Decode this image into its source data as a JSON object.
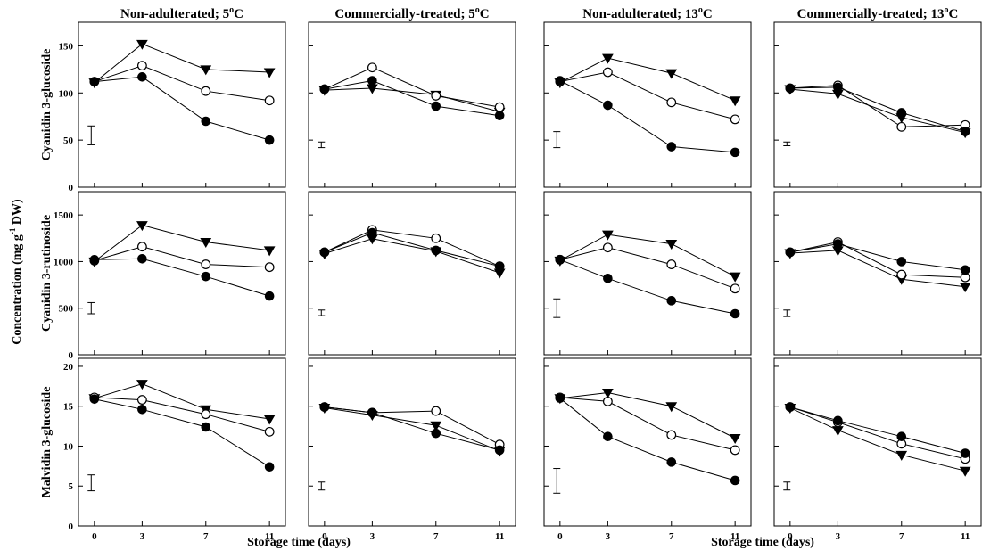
{
  "figure": {
    "y_axis_label": "Concentration (mg g",
    "y_axis_unit_sup": "-1",
    "y_axis_label_tail": " DW)",
    "x_axis_label": "Storage time (days)"
  },
  "chart_data": {
    "type": "line",
    "panels_layout": "3 rows x 4 columns",
    "x": [
      0,
      3,
      7,
      11
    ],
    "x_ticks": [
      "0",
      "3",
      "7",
      "11"
    ],
    "columns": [
      {
        "title": "Non-adulterated; 5",
        "sup": "o",
        "unit": "C"
      },
      {
        "title": "Commercially-treated; 5",
        "sup": "o",
        "unit": "C"
      },
      {
        "title": "Non-adulterated; 13",
        "sup": "o",
        "unit": "C"
      },
      {
        "title": "Commercially-treated; 13",
        "sup": "o",
        "unit": "C"
      }
    ],
    "series_markers": [
      "filled-triangle-down",
      "open-circle",
      "filled-circle"
    ],
    "rows": [
      {
        "label": "Cyanidin 3-glucoside",
        "ylim": [
          0,
          175
        ],
        "yticks": [
          0,
          50,
          100,
          150
        ],
        "panels": [
          {
            "series": [
              {
                "marker": "filled-triangle-down",
                "values": [
                  111,
                  152,
                  125,
                  122
                ]
              },
              {
                "marker": "open-circle",
                "values": [
                  112,
                  129,
                  102,
                  92
                ]
              },
              {
                "marker": "filled-circle",
                "values": [
                  112,
                  117,
                  70,
                  50
                ]
              }
            ],
            "error_bar": [
              45,
              65
            ]
          },
          {
            "series": [
              {
                "marker": "filled-triangle-down",
                "values": [
                  103,
                  105,
                  98,
                  80
                ]
              },
              {
                "marker": "open-circle",
                "values": [
                  104,
                  127,
                  97,
                  85
                ]
              },
              {
                "marker": "filled-circle",
                "values": [
                  104,
                  113,
                  86,
                  76
                ]
              }
            ],
            "error_bar": [
              42,
              48
            ]
          },
          {
            "series": [
              {
                "marker": "filled-triangle-down",
                "values": [
                  111,
                  137,
                  121,
                  92
                ]
              },
              {
                "marker": "open-circle",
                "values": [
                  112,
                  122,
                  90,
                  72
                ]
              },
              {
                "marker": "filled-circle",
                "values": [
                  113,
                  87,
                  43,
                  37
                ]
              }
            ],
            "error_bar": [
              42,
              59
            ]
          },
          {
            "series": [
              {
                "marker": "filled-triangle-down",
                "values": [
                  104,
                  99,
                  74,
                  58
                ]
              },
              {
                "marker": "open-circle",
                "values": [
                  105,
                  108,
                  64,
                  66
                ]
              },
              {
                "marker": "filled-circle",
                "values": [
                  105,
                  106,
                  79,
                  59
                ]
              }
            ],
            "error_bar": [
              44,
              48
            ]
          }
        ]
      },
      {
        "label": "Cyanidin 3-rutinoside",
        "ylim": [
          0,
          1750
        ],
        "yticks": [
          0,
          500,
          1000,
          1500
        ],
        "panels": [
          {
            "series": [
              {
                "marker": "filled-triangle-down",
                "values": [
                  1000,
                  1390,
                  1210,
                  1120
                ]
              },
              {
                "marker": "open-circle",
                "values": [
                  1010,
                  1160,
                  970,
                  940
                ]
              },
              {
                "marker": "filled-circle",
                "values": [
                  1020,
                  1030,
                  840,
                  630
                ]
              }
            ],
            "error_bar": [
              440,
              560
            ]
          },
          {
            "series": [
              {
                "marker": "filled-triangle-down",
                "values": [
                  1085,
                  1245,
                  1110,
                  880
                ]
              },
              {
                "marker": "open-circle",
                "values": [
                  1100,
                  1340,
                  1250,
                  950
                ]
              },
              {
                "marker": "filled-circle",
                "values": [
                  1100,
                  1310,
                  1120,
                  950
                ]
              }
            ],
            "error_bar": [
              420,
              480
            ]
          },
          {
            "series": [
              {
                "marker": "filled-triangle-down",
                "values": [
                  1010,
                  1290,
                  1190,
                  840
                ]
              },
              {
                "marker": "open-circle",
                "values": [
                  1020,
                  1150,
                  970,
                  710
                ]
              },
              {
                "marker": "filled-circle",
                "values": [
                  1020,
                  820,
                  580,
                  440
                ]
              }
            ],
            "error_bar": [
              400,
              600
            ]
          },
          {
            "series": [
              {
                "marker": "filled-triangle-down",
                "values": [
                  1090,
                  1120,
                  810,
                  730
                ]
              },
              {
                "marker": "open-circle",
                "values": [
                  1100,
                  1210,
                  860,
                  830
                ]
              },
              {
                "marker": "filled-circle",
                "values": [
                  1100,
                  1190,
                  1000,
                  910
                ]
              }
            ],
            "error_bar": [
              410,
              480
            ]
          }
        ]
      },
      {
        "label": "Malvidin 3-glucoside",
        "ylim": [
          0,
          21
        ],
        "yticks": [
          0,
          5,
          10,
          15,
          20
        ],
        "panels": [
          {
            "series": [
              {
                "marker": "filled-triangle-down",
                "values": [
                  16.0,
                  17.8,
                  14.6,
                  13.4
                ]
              },
              {
                "marker": "open-circle",
                "values": [
                  16.1,
                  15.8,
                  14.0,
                  11.8
                ]
              },
              {
                "marker": "filled-circle",
                "values": [
                  15.9,
                  14.6,
                  12.4,
                  7.4
                ]
              }
            ],
            "error_bar": [
              4.4,
              6.4
            ]
          },
          {
            "series": [
              {
                "marker": "filled-triangle-down",
                "values": [
                  14.8,
                  13.9,
                  12.6,
                  9.4
                ]
              },
              {
                "marker": "open-circle",
                "values": [
                  14.9,
                  14.2,
                  14.4,
                  10.2
                ]
              },
              {
                "marker": "filled-circle",
                "values": [
                  14.9,
                  14.2,
                  11.6,
                  9.5
                ]
              }
            ],
            "error_bar": [
              4.5,
              5.5
            ]
          },
          {
            "series": [
              {
                "marker": "filled-triangle-down",
                "values": [
                  16.0,
                  16.7,
                  15.0,
                  11.0
                ]
              },
              {
                "marker": "open-circle",
                "values": [
                  16.1,
                  15.6,
                  11.4,
                  9.5
                ]
              },
              {
                "marker": "filled-circle",
                "values": [
                  16.0,
                  11.2,
                  8.0,
                  5.7
                ]
              }
            ],
            "error_bar": [
              4.1,
              7.2
            ]
          },
          {
            "series": [
              {
                "marker": "filled-triangle-down",
                "values": [
                  14.8,
                  12.0,
                  8.9,
                  6.9
                ]
              },
              {
                "marker": "open-circle",
                "values": [
                  14.9,
                  13.0,
                  10.3,
                  8.4
                ]
              },
              {
                "marker": "filled-circle",
                "values": [
                  14.9,
                  13.2,
                  11.2,
                  9.1
                ]
              }
            ],
            "error_bar": [
              4.5,
              5.5
            ]
          }
        ]
      }
    ]
  }
}
